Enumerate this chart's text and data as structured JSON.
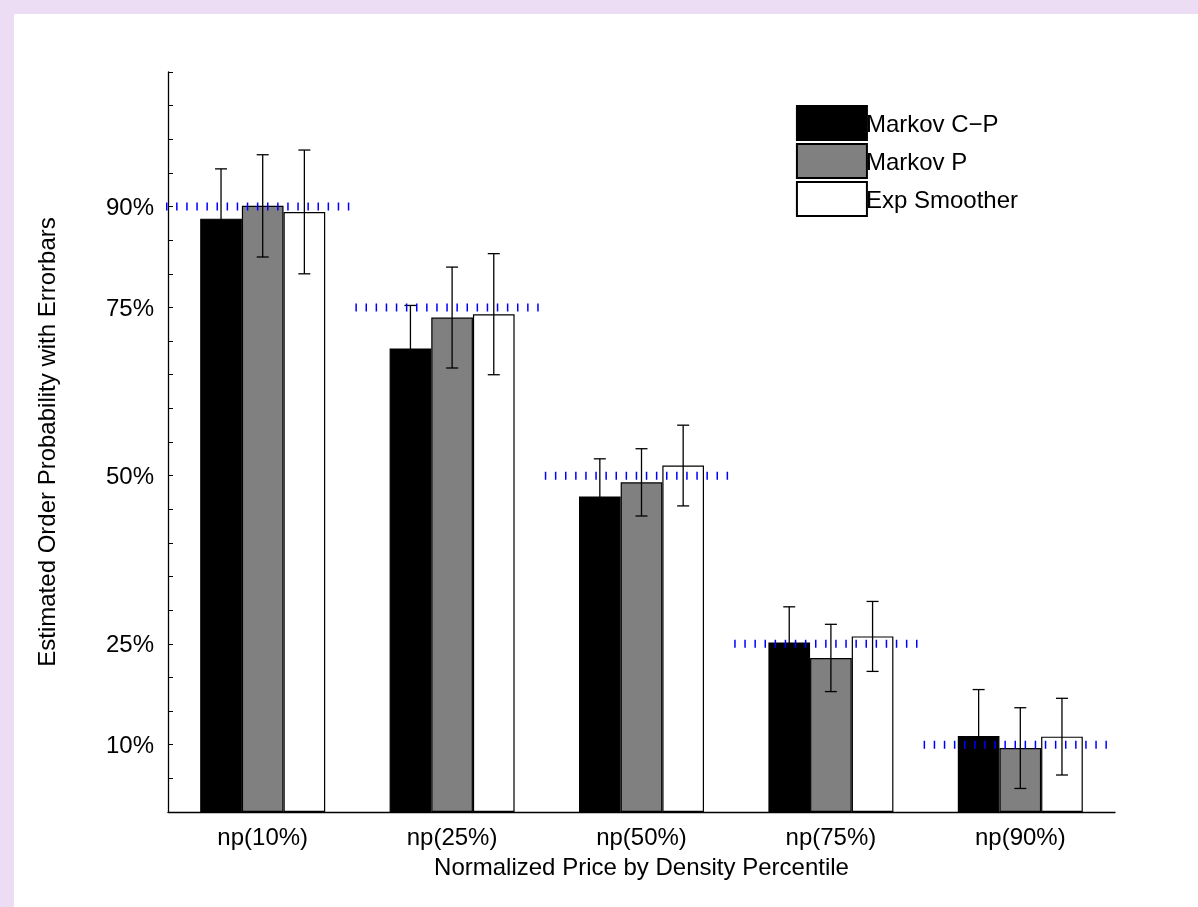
{
  "chart_data": {
    "type": "bar",
    "xlabel": "Normalized Price by Density Percentile",
    "ylabel": "Estimated Order Probability with Errorbars",
    "categories": [
      "np(10%)",
      "np(25%)",
      "np(50%)",
      "np(75%)",
      "np(90%)"
    ],
    "series": [
      {
        "name": "Markov C−P",
        "color": "#000000",
        "values": [
          88.2,
          68.9,
          46.9,
          25.2,
          11.3
        ],
        "errors": [
          7.4,
          6.4,
          5.6,
          5.3,
          6.9
        ]
      },
      {
        "name": "Markov P",
        "color": "#808080",
        "values": [
          90.1,
          73.5,
          49.0,
          22.9,
          9.5
        ],
        "errors": [
          7.6,
          7.5,
          5.0,
          5.0,
          6.0
        ]
      },
      {
        "name": "Exp Smoother",
        "color": "#ffffff",
        "values": [
          89.2,
          74.0,
          51.5,
          26.1,
          11.2
        ],
        "errors": [
          9.2,
          9.0,
          6.0,
          5.2,
          5.7
        ]
      }
    ],
    "ylim": [
      0,
      110
    ],
    "yticks": [
      {
        "value": 0,
        "label": null
      },
      {
        "value": 5,
        "label": null
      },
      {
        "value": 10,
        "label": "10%"
      },
      {
        "value": 15,
        "label": null
      },
      {
        "value": 20,
        "label": null
      },
      {
        "value": 25,
        "label": "25%"
      },
      {
        "value": 30,
        "label": null
      },
      {
        "value": 35,
        "label": null
      },
      {
        "value": 40,
        "label": null
      },
      {
        "value": 45,
        "label": null
      },
      {
        "value": 50,
        "label": "50%"
      },
      {
        "value": 55,
        "label": null
      },
      {
        "value": 60,
        "label": null
      },
      {
        "value": 65,
        "label": null
      },
      {
        "value": 70,
        "label": null
      },
      {
        "value": 75,
        "label": "75%"
      },
      {
        "value": 80,
        "label": null
      },
      {
        "value": 85,
        "label": null
      },
      {
        "value": 90,
        "label": "90%"
      },
      {
        "value": 95,
        "label": null
      },
      {
        "value": 100,
        "label": null
      },
      {
        "value": 105,
        "label": null
      },
      {
        "value": 110,
        "label": null
      }
    ],
    "ref_lines": [
      {
        "axis": "y",
        "value": 90,
        "color": "#0000ff",
        "line_style": "dotted"
      },
      {
        "axis": "y",
        "value": 75,
        "color": "#0000ff",
        "line_style": "dotted"
      },
      {
        "axis": "y",
        "value": 50,
        "color": "#0000ff",
        "line_style": "dotted"
      },
      {
        "axis": "y",
        "value": 25,
        "color": "#0000ff",
        "line_style": "dotted"
      },
      {
        "axis": "y",
        "value": 10,
        "color": "#0000ff",
        "line_style": "dotted"
      }
    ],
    "grid": false,
    "legend": "top right"
  }
}
